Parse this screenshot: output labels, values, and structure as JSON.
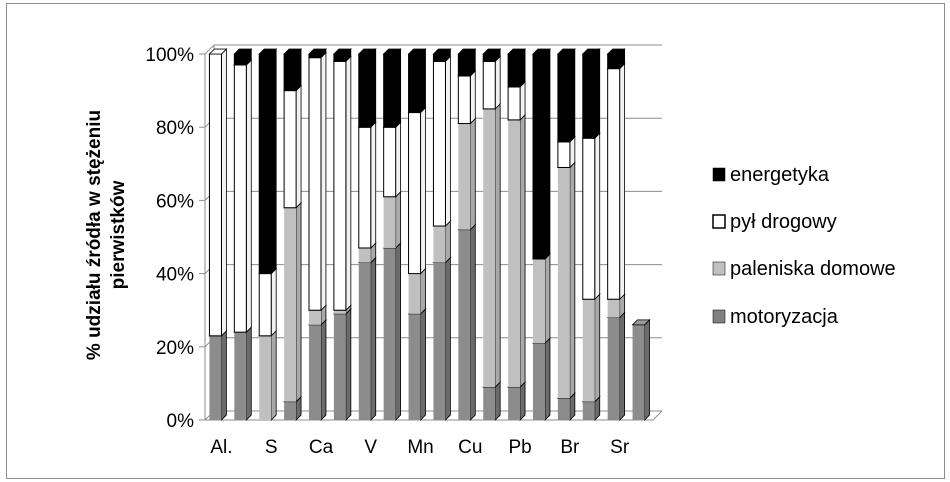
{
  "chart_data": {
    "type": "bar",
    "stacked": true,
    "three_d": true,
    "title": "",
    "xlabel": "",
    "ylabel_lines": [
      "% udziału źródła w stężeniu",
      "pierwistków"
    ],
    "ylim": [
      0,
      100
    ],
    "yticks": [
      "0%",
      "20%",
      "40%",
      "60%",
      "80%",
      "100%"
    ],
    "grid": true,
    "legend_position": "right",
    "categories": [
      "Al.",
      "",
      "S",
      "",
      "Ca",
      "",
      "V",
      "",
      "Mn",
      "",
      "Cu",
      "",
      "Pb",
      "",
      "Br",
      "",
      "Sr",
      ""
    ],
    "series": [
      {
        "name": "motoryzacja",
        "color": "#808080",
        "values": [
          23,
          24,
          0,
          5,
          26,
          29,
          43,
          47,
          29,
          43,
          52,
          9,
          9,
          21,
          6,
          5,
          28,
          26
        ]
      },
      {
        "name": "paleniska domowe",
        "color": "#c0c0c0",
        "values": [
          0,
          0,
          23,
          53,
          4,
          1,
          4,
          14,
          11,
          10,
          29,
          76,
          73,
          23,
          63,
          28,
          5,
          0
        ]
      },
      {
        "name": "pył drogowy",
        "color": "#ffffff",
        "values": [
          77,
          73,
          17,
          32,
          69,
          68,
          33,
          19,
          44,
          45,
          13,
          13,
          9,
          0,
          7,
          44,
          63,
          0
        ]
      },
      {
        "name": "energetyka",
        "color": "#000000",
        "values": [
          0,
          3,
          60,
          10,
          1,
          2,
          20,
          20,
          16,
          2,
          6,
          2,
          9,
          56,
          24,
          23,
          4,
          0
        ]
      }
    ]
  },
  "legend": {
    "items": [
      {
        "label": "energetyka",
        "color": "#000000"
      },
      {
        "label": "pył drogowy",
        "color": "#ffffff"
      },
      {
        "label": "paleniska domowe",
        "color": "#c0c0c0"
      },
      {
        "label": "motoryzacja",
        "color": "#808080"
      }
    ]
  }
}
